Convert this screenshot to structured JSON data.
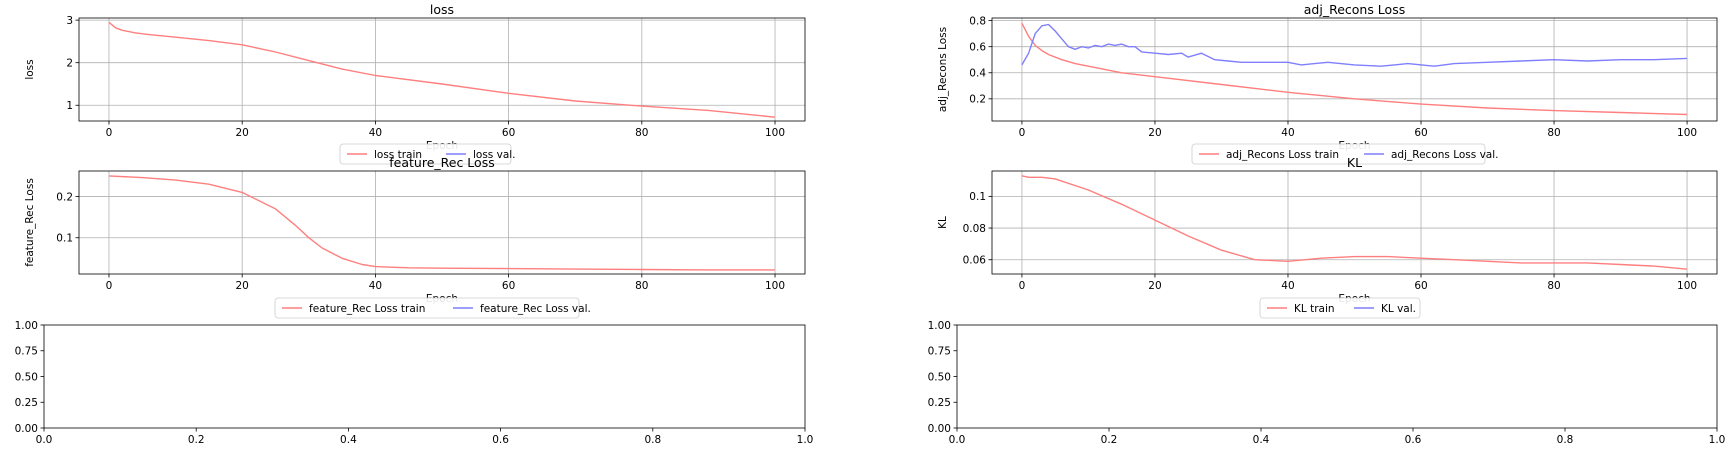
{
  "figure": {
    "background": "#ffffff",
    "train_color": "#ff7f7f",
    "val_color": "#7f7fff",
    "grid_color": "#b0b0b0"
  },
  "chart_data": [
    {
      "type": "line",
      "title": "loss",
      "xlabel": "Epoch",
      "ylabel": "loss",
      "xlim": [
        -4.5,
        104.5
      ],
      "ylim": [
        0.63,
        3.05
      ],
      "xticks": [
        0,
        20,
        40,
        60,
        80,
        100
      ],
      "yticks": [
        1,
        2,
        3
      ],
      "grid": true,
      "legend": "bottom-center-outside",
      "series": [
        {
          "name": "loss train",
          "color": "#ff7f7f",
          "x": [
            0,
            1,
            2,
            4,
            6,
            10,
            15,
            20,
            25,
            30,
            35,
            40,
            50,
            60,
            70,
            80,
            90,
            100
          ],
          "y": [
            2.95,
            2.82,
            2.76,
            2.7,
            2.66,
            2.6,
            2.52,
            2.42,
            2.25,
            2.05,
            1.85,
            1.7,
            1.5,
            1.28,
            1.1,
            0.98,
            0.88,
            0.72
          ]
        },
        {
          "name": "loss val.",
          "color": "#7f7fff",
          "x": [],
          "y": []
        }
      ]
    },
    {
      "type": "line",
      "title": "adj_Recons Loss",
      "xlabel": "Epoch",
      "ylabel": "adj_Recons Loss",
      "xlim": [
        -4.5,
        104.5
      ],
      "ylim": [
        0.03,
        0.82
      ],
      "xticks": [
        0,
        20,
        40,
        60,
        80,
        100
      ],
      "yticks": [
        0.2,
        0.4,
        0.6,
        0.8
      ],
      "grid": true,
      "legend": "bottom-center-outside",
      "series": [
        {
          "name": "adj_Recons Loss train",
          "color": "#ff7f7f",
          "x": [
            0,
            1,
            2,
            3,
            4,
            6,
            8,
            10,
            15,
            20,
            30,
            40,
            50,
            60,
            70,
            80,
            90,
            100
          ],
          "y": [
            0.78,
            0.68,
            0.61,
            0.57,
            0.54,
            0.5,
            0.47,
            0.45,
            0.4,
            0.37,
            0.31,
            0.25,
            0.2,
            0.16,
            0.13,
            0.11,
            0.095,
            0.08
          ]
        },
        {
          "name": "adj_Recons Loss val.",
          "color": "#7f7fff",
          "x": [
            0,
            1,
            2,
            3,
            4,
            5,
            6,
            7,
            8,
            9,
            10,
            11,
            12,
            13,
            14,
            15,
            16,
            17,
            18,
            20,
            22,
            24,
            25,
            27,
            29,
            31,
            33,
            35,
            38,
            40,
            42,
            44,
            46,
            50,
            54,
            58,
            62,
            65,
            70,
            75,
            80,
            85,
            90,
            95,
            100
          ],
          "y": [
            0.46,
            0.55,
            0.7,
            0.76,
            0.77,
            0.72,
            0.66,
            0.6,
            0.58,
            0.6,
            0.59,
            0.61,
            0.6,
            0.62,
            0.61,
            0.62,
            0.6,
            0.6,
            0.56,
            0.55,
            0.54,
            0.55,
            0.52,
            0.55,
            0.5,
            0.49,
            0.48,
            0.48,
            0.48,
            0.48,
            0.46,
            0.47,
            0.48,
            0.46,
            0.45,
            0.47,
            0.45,
            0.47,
            0.48,
            0.49,
            0.5,
            0.49,
            0.5,
            0.5,
            0.51
          ]
        }
      ]
    },
    {
      "type": "line",
      "title": "feature_Rec Loss",
      "xlabel": "Epoch",
      "ylabel": "feature_Rec Loss",
      "xlim": [
        -4.5,
        104.5
      ],
      "ylim": [
        0.012,
        0.262
      ],
      "xticks": [
        0,
        20,
        40,
        60,
        80,
        100
      ],
      "yticks": [
        0.1,
        0.2
      ],
      "grid": true,
      "legend": "bottom-center-outside",
      "series": [
        {
          "name": "feature_Rec Loss train",
          "color": "#ff7f7f",
          "x": [
            0,
            5,
            10,
            15,
            20,
            25,
            28,
            30,
            32,
            35,
            38,
            40,
            45,
            50,
            60,
            70,
            80,
            90,
            100
          ],
          "y": [
            0.25,
            0.246,
            0.24,
            0.23,
            0.21,
            0.17,
            0.13,
            0.1,
            0.075,
            0.05,
            0.035,
            0.03,
            0.027,
            0.026,
            0.025,
            0.024,
            0.023,
            0.022,
            0.022
          ]
        },
        {
          "name": "feature_Rec Loss val.",
          "color": "#7f7fff",
          "x": [],
          "y": []
        }
      ]
    },
    {
      "type": "line",
      "title": "KL",
      "xlabel": "Epoch",
      "ylabel": "KL",
      "xlim": [
        -4.5,
        104.5
      ],
      "ylim": [
        0.051,
        0.116
      ],
      "xticks": [
        0,
        20,
        40,
        60,
        80,
        100
      ],
      "yticks": [
        0.06,
        0.08,
        0.1
      ],
      "grid": true,
      "legend": "bottom-center-outside",
      "series": [
        {
          "name": "KL train",
          "color": "#ff7f7f",
          "x": [
            0,
            1,
            3,
            5,
            10,
            15,
            20,
            25,
            30,
            35,
            40,
            45,
            50,
            55,
            60,
            65,
            70,
            75,
            80,
            85,
            90,
            95,
            100
          ],
          "y": [
            0.113,
            0.112,
            0.112,
            0.111,
            0.104,
            0.095,
            0.085,
            0.075,
            0.066,
            0.06,
            0.059,
            0.061,
            0.062,
            0.062,
            0.061,
            0.06,
            0.059,
            0.058,
            0.058,
            0.058,
            0.057,
            0.056,
            0.054
          ]
        },
        {
          "name": "KL val.",
          "color": "#7f7fff",
          "x": [],
          "y": []
        }
      ]
    },
    {
      "type": "line",
      "title": "",
      "xlabel": "",
      "ylabel": "",
      "xlim": [
        0,
        1
      ],
      "ylim": [
        0,
        1
      ],
      "xticks": [
        0.0,
        0.2,
        0.4,
        0.6,
        0.8,
        1.0
      ],
      "yticks": [
        0.0,
        0.25,
        0.5,
        0.75,
        1.0
      ],
      "xtick_labels": [
        "0.0",
        "0.2",
        "0.4",
        "0.6",
        "0.8",
        "1.0"
      ],
      "ytick_labels": [
        "0.00",
        "0.25",
        "0.50",
        "0.75",
        "1.00"
      ],
      "grid": false,
      "series": []
    },
    {
      "type": "line",
      "title": "",
      "xlabel": "",
      "ylabel": "",
      "xlim": [
        0,
        1
      ],
      "ylim": [
        0,
        1
      ],
      "xticks": [
        0.0,
        0.2,
        0.4,
        0.6,
        0.8,
        1.0
      ],
      "yticks": [
        0.0,
        0.25,
        0.5,
        0.75,
        1.0
      ],
      "xtick_labels": [
        "0.0",
        "0.2",
        "0.4",
        "0.6",
        "0.8",
        "1.0"
      ],
      "ytick_labels": [
        "0.00",
        "0.25",
        "0.50",
        "0.75",
        "1.00"
      ],
      "grid": false,
      "series": []
    }
  ]
}
